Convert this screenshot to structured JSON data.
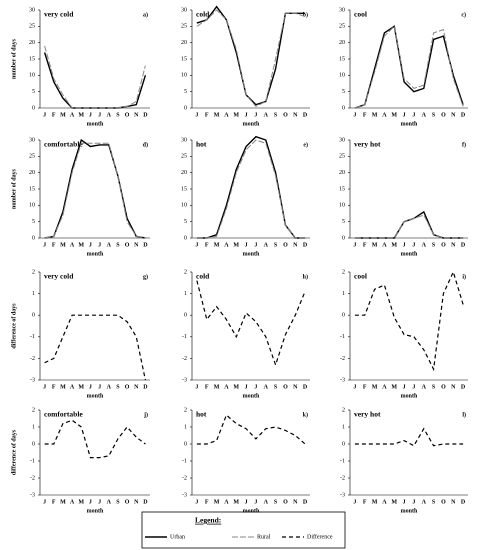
{
  "chart_data": [
    {
      "type": "line",
      "title": "very cold",
      "label": "a)",
      "ylabel": "number of days",
      "xlabel": "month",
      "categories": [
        "J",
        "F",
        "M",
        "A",
        "M",
        "J",
        "J",
        "A",
        "S",
        "O",
        "N",
        "D"
      ],
      "ylim": [
        0,
        30
      ],
      "yticks": [
        0,
        5,
        10,
        15,
        20,
        25,
        30
      ],
      "series": [
        {
          "name": "Urban",
          "color": "#000000",
          "style": "solid",
          "values": [
            17,
            8,
            3,
            0,
            0,
            0,
            0,
            0,
            0,
            0.5,
            1,
            10
          ]
        },
        {
          "name": "Rural",
          "color": "#888888",
          "style": "dashed",
          "values": [
            19,
            9,
            4,
            0,
            0,
            0,
            0,
            0,
            0,
            0.5,
            2,
            13
          ]
        }
      ]
    },
    {
      "type": "line",
      "title": "cold",
      "label": "b)",
      "xlabel": "month",
      "categories": [
        "J",
        "F",
        "M",
        "A",
        "M",
        "J",
        "J",
        "A",
        "S",
        "O",
        "N",
        "D"
      ],
      "ylim": [
        0,
        30
      ],
      "yticks": [
        0,
        5,
        10,
        15,
        20,
        25,
        30
      ],
      "series": [
        {
          "color": "#000000",
          "style": "solid",
          "values": [
            26,
            27,
            31,
            27,
            17,
            4,
            1,
            2,
            12,
            29,
            29,
            29
          ]
        },
        {
          "color": "#888888",
          "style": "dashed",
          "values": [
            25,
            27,
            30,
            27,
            18,
            4,
            0.5,
            2,
            15,
            29,
            29,
            28
          ]
        }
      ]
    },
    {
      "type": "line",
      "title": "cool",
      "label": "c)",
      "xlabel": "month",
      "categories": [
        "J",
        "F",
        "M",
        "A",
        "M",
        "J",
        "J",
        "A",
        "S",
        "O",
        "N",
        "D"
      ],
      "ylim": [
        0,
        30
      ],
      "yticks": [
        0,
        5,
        10,
        15,
        20,
        25,
        30
      ],
      "series": [
        {
          "color": "#000000",
          "style": "solid",
          "values": [
            0,
            1,
            12,
            23,
            25,
            8,
            5,
            6,
            21,
            22,
            10,
            1
          ]
        },
        {
          "color": "#888888",
          "style": "dashed",
          "values": [
            0,
            1,
            11,
            22,
            25,
            9,
            6,
            7,
            23,
            24,
            9,
            0.5
          ]
        }
      ]
    },
    {
      "type": "line",
      "title": "comfortable",
      "label": "d)",
      "ylabel": "number of days",
      "xlabel": "month",
      "categories": [
        "J",
        "F",
        "M",
        "A",
        "M",
        "J",
        "J",
        "A",
        "S",
        "O",
        "N",
        "D"
      ],
      "ylim": [
        0,
        30
      ],
      "yticks": [
        0,
        5,
        10,
        15,
        20,
        25,
        30
      ],
      "series": [
        {
          "color": "#000000",
          "style": "solid",
          "values": [
            0,
            0.5,
            8,
            21,
            30,
            28,
            28.5,
            28.5,
            19,
            6,
            0.5,
            0
          ]
        },
        {
          "color": "#888888",
          "style": "dashed",
          "values": [
            0,
            0.5,
            7,
            20,
            29,
            29,
            29,
            29,
            19,
            5,
            0.5,
            0
          ]
        }
      ]
    },
    {
      "type": "line",
      "title": "hot",
      "label": "e)",
      "xlabel": "month",
      "categories": [
        "J",
        "F",
        "M",
        "A",
        "M",
        "J",
        "J",
        "A",
        "S",
        "O",
        "N",
        "D"
      ],
      "ylim": [
        0,
        30
      ],
      "yticks": [
        0,
        5,
        10,
        15,
        20,
        25,
        30
      ],
      "series": [
        {
          "color": "#000000",
          "style": "solid",
          "values": [
            0,
            0,
            1,
            10,
            21,
            28,
            31,
            30,
            20,
            4,
            0,
            0
          ]
        },
        {
          "color": "#888888",
          "style": "dashed",
          "values": [
            0,
            0,
            0.5,
            9,
            20,
            27,
            30,
            29,
            19,
            4,
            0,
            0
          ]
        }
      ]
    },
    {
      "type": "line",
      "title": "very hot",
      "label": "f)",
      "xlabel": "month",
      "categories": [
        "J",
        "F",
        "M",
        "A",
        "M",
        "J",
        "J",
        "A",
        "S",
        "O",
        "N",
        "D"
      ],
      "ylim": [
        0,
        30
      ],
      "yticks": [
        0,
        5,
        10,
        15,
        20,
        25,
        30
      ],
      "series": [
        {
          "color": "#000000",
          "style": "solid",
          "values": [
            0,
            0,
            0,
            0,
            0,
            5,
            6,
            8,
            1,
            0,
            0,
            0
          ]
        },
        {
          "color": "#888888",
          "style": "dashed",
          "values": [
            0,
            0,
            0,
            0,
            0,
            5,
            6,
            7,
            1,
            0,
            0,
            0
          ]
        }
      ]
    },
    {
      "type": "line",
      "title": "very cold",
      "label": "g)",
      "ylabel": "difference of days",
      "xlabel": "month",
      "categories": [
        "J",
        "F",
        "M",
        "A",
        "M",
        "J",
        "J",
        "A",
        "S",
        "O",
        "N",
        "D"
      ],
      "ylim": [
        -3,
        2
      ],
      "yticks": [
        -3,
        -2,
        -1,
        0,
        1,
        2
      ],
      "series": [
        {
          "name": "Difference",
          "color": "#000000",
          "style": "dotted",
          "values": [
            -2.2,
            -2,
            -1,
            0,
            0,
            0,
            0,
            0,
            0,
            -0.3,
            -1,
            -3
          ]
        }
      ]
    },
    {
      "type": "line",
      "title": "cold",
      "label": "h)",
      "xlabel": "month",
      "categories": [
        "J",
        "F",
        "M",
        "A",
        "M",
        "J",
        "J",
        "A",
        "S",
        "O",
        "N",
        "D"
      ],
      "ylim": [
        -3,
        2
      ],
      "yticks": [
        -3,
        -2,
        -1,
        0,
        1,
        2
      ],
      "series": [
        {
          "color": "#000000",
          "style": "dotted",
          "values": [
            1.6,
            -0.2,
            0.4,
            -0.2,
            -1,
            0.1,
            -0.3,
            -1,
            -2.3,
            -0.9,
            0,
            1.1
          ]
        }
      ]
    },
    {
      "type": "line",
      "title": "cool",
      "label": "i)",
      "xlabel": "month",
      "categories": [
        "J",
        "F",
        "M",
        "A",
        "M",
        "J",
        "J",
        "A",
        "S",
        "O",
        "N",
        "D"
      ],
      "ylim": [
        -3,
        2
      ],
      "yticks": [
        -3,
        -2,
        -1,
        0,
        1,
        2
      ],
      "series": [
        {
          "color": "#000000",
          "style": "dotted",
          "values": [
            0,
            0,
            1.2,
            1.4,
            -0.1,
            -0.9,
            -1,
            -1.6,
            -2.5,
            1,
            2,
            0.5
          ]
        }
      ]
    },
    {
      "type": "line",
      "title": "comfortable",
      "label": "j)",
      "ylabel": "difference of days",
      "xlabel": "month",
      "categories": [
        "J",
        "F",
        "M",
        "A",
        "M",
        "J",
        "J",
        "A",
        "S",
        "O",
        "N",
        "D"
      ],
      "ylim": [
        -3,
        2
      ],
      "yticks": [
        -3,
        -2,
        -1,
        0,
        1,
        2
      ],
      "series": [
        {
          "color": "#000000",
          "style": "dotted",
          "values": [
            0,
            0,
            1.2,
            1.4,
            1,
            -0.8,
            -0.8,
            -0.7,
            0.3,
            1,
            0.4,
            0
          ]
        }
      ]
    },
    {
      "type": "line",
      "title": "hot",
      "label": "k)",
      "xlabel": "month",
      "categories": [
        "J",
        "F",
        "M",
        "A",
        "M",
        "J",
        "J",
        "A",
        "S",
        "O",
        "N",
        "D"
      ],
      "ylim": [
        -3,
        2
      ],
      "yticks": [
        -3,
        -2,
        -1,
        0,
        1,
        2
      ],
      "series": [
        {
          "color": "#000000",
          "style": "dotted",
          "values": [
            0,
            0,
            0.2,
            1.7,
            1.2,
            0.9,
            0.3,
            0.9,
            1,
            0.8,
            0.5,
            0
          ]
        }
      ]
    },
    {
      "type": "line",
      "title": "very hot",
      "label": "l)",
      "xlabel": "month",
      "categories": [
        "J",
        "F",
        "M",
        "A",
        "M",
        "J",
        "J",
        "A",
        "S",
        "O",
        "N",
        "D"
      ],
      "ylim": [
        -3,
        2
      ],
      "yticks": [
        -3,
        -2,
        -1,
        0,
        1,
        2
      ],
      "series": [
        {
          "color": "#000000",
          "style": "dotted",
          "values": [
            0,
            0,
            0,
            0,
            0,
            0.2,
            -0.1,
            0.9,
            -0.1,
            0,
            0,
            0
          ]
        }
      ]
    }
  ],
  "legend": {
    "title": "Legend:"
  }
}
